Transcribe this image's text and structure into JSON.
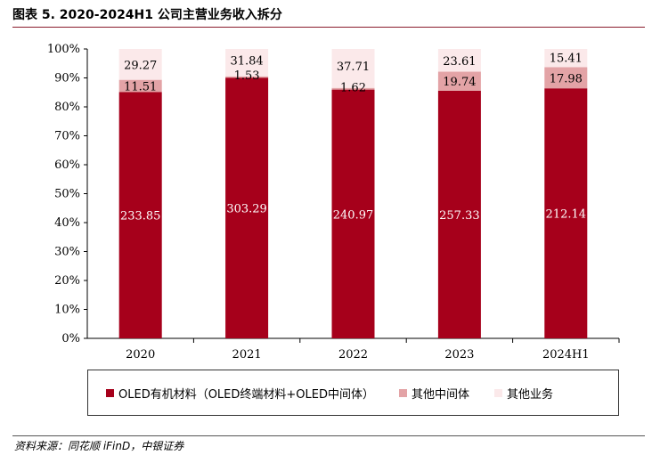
{
  "title": "图表 5. 2020-2024H1 公司主营业务收入拆分",
  "source": "资料来源：同花顺 iFinD，中银证券",
  "chart_data": {
    "type": "bar",
    "stacked": "percent",
    "categories": [
      "2020",
      "2021",
      "2022",
      "2023",
      "2024H1"
    ],
    "y_ticks": [
      "0%",
      "10%",
      "20%",
      "30%",
      "40%",
      "50%",
      "60%",
      "70%",
      "80%",
      "90%",
      "100%"
    ],
    "ylim": [
      0,
      100
    ],
    "grid": false,
    "legend_position": "bottom",
    "series": [
      {
        "name": "OLED有机材料（OLED终端材料+OLED中间体）",
        "color": "#a6001b",
        "label_color": "#ffffff",
        "values": [
          233.85,
          303.29,
          240.97,
          257.33,
          212.14
        ]
      },
      {
        "name": "其他中间体",
        "color": "#e3a3a6",
        "label_color": "#000000",
        "values": [
          11.51,
          1.53,
          1.62,
          19.74,
          17.98
        ]
      },
      {
        "name": "其他业务",
        "color": "#fbe9ea",
        "label_color": "#000000",
        "values": [
          29.27,
          31.84,
          37.71,
          23.61,
          15.41
        ]
      }
    ],
    "value_labels": [
      [
        "233.85",
        "303.29",
        "240.97",
        "257.33",
        "212.14"
      ],
      [
        "11.51",
        "1.53",
        "1.62",
        "19.74",
        "17.98"
      ],
      [
        "29.27",
        "31.84",
        "37.71",
        "23.61",
        "15.41"
      ]
    ]
  }
}
